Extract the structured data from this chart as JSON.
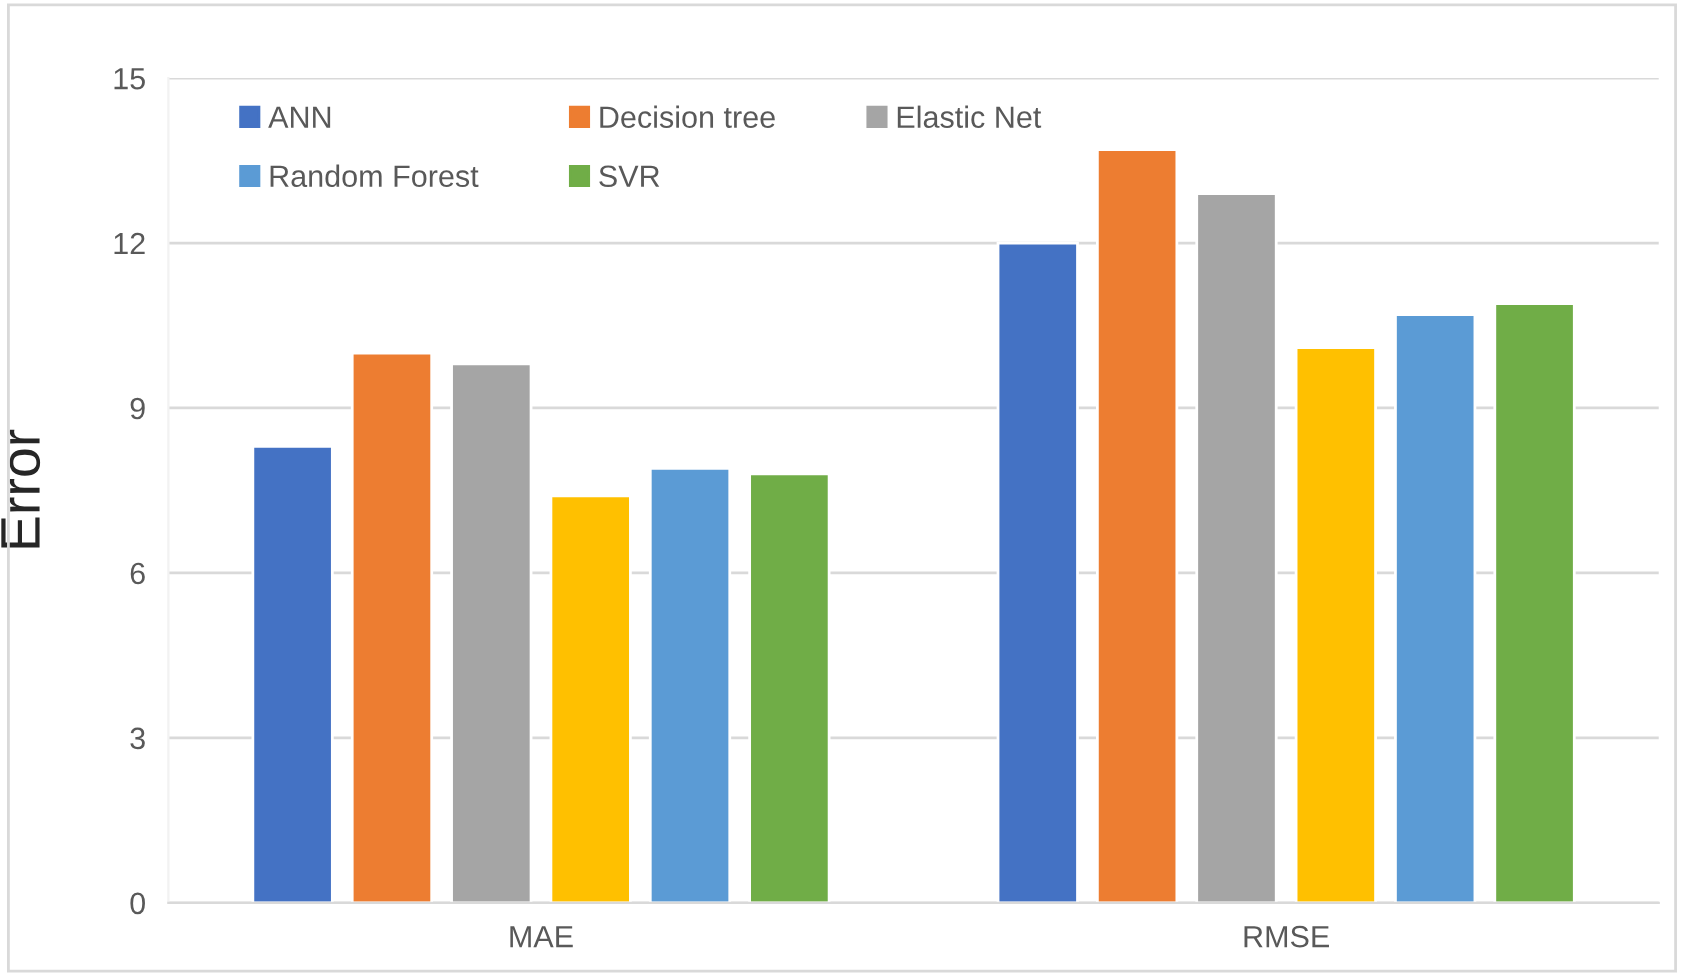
{
  "chart_data": {
    "type": "bar",
    "ylabel": "Error",
    "categories": [
      "MAE",
      "RMSE"
    ],
    "series": [
      {
        "name": "ANN",
        "color": "#4472c4",
        "values": [
          8.3,
          12.0
        ]
      },
      {
        "name": "Decision tree",
        "color": "#ed7d31",
        "values": [
          10.0,
          13.7
        ]
      },
      {
        "name": "Elastic Net",
        "color": "#a5a5a5",
        "values": [
          9.8,
          12.9
        ]
      },
      {
        "color": "#ffc000",
        "values": [
          7.4,
          10.1
        ]
      },
      {
        "name": "Random Forest",
        "color": "#5b9bd5",
        "values": [
          7.9,
          10.7
        ]
      },
      {
        "name": "SVR",
        "color": "#70ad47",
        "values": [
          7.8,
          10.9
        ]
      }
    ],
    "ylim": [
      0,
      15
    ],
    "yticks": [
      0,
      3,
      6,
      9,
      12,
      15
    ],
    "grid": "y",
    "legend": "top left"
  }
}
